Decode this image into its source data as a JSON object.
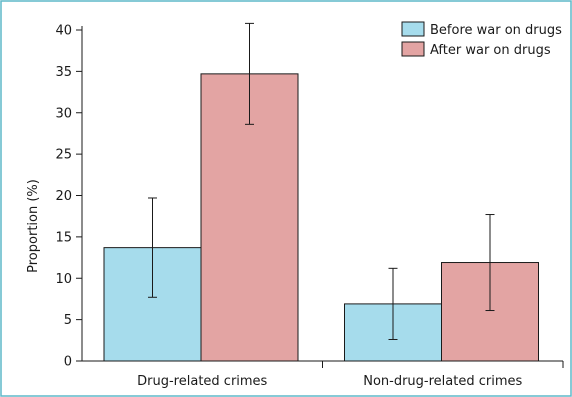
{
  "chart_data": {
    "type": "bar",
    "categories": [
      "Drug-related crimes",
      "Non-drug-related crimes"
    ],
    "series": [
      {
        "name": "Before war on drugs",
        "color": "#a6dcec",
        "values": [
          13.7,
          6.9
        ],
        "error_low": [
          7.7,
          2.6
        ],
        "error_high": [
          19.7,
          11.2
        ]
      },
      {
        "name": "After war on drugs",
        "color": "#e3a4a3",
        "values": [
          34.7,
          11.9
        ],
        "error_low": [
          28.6,
          6.1
        ],
        "error_high": [
          40.8,
          17.7
        ]
      }
    ],
    "xlabel": "",
    "ylabel": "Proportion (%)",
    "ylim": [
      0,
      40
    ],
    "yticks": [
      0,
      5,
      10,
      15,
      20,
      25,
      30,
      35,
      40
    ],
    "grid": false,
    "legend_position": "top-right",
    "frame_color": "#5fb8c8"
  }
}
